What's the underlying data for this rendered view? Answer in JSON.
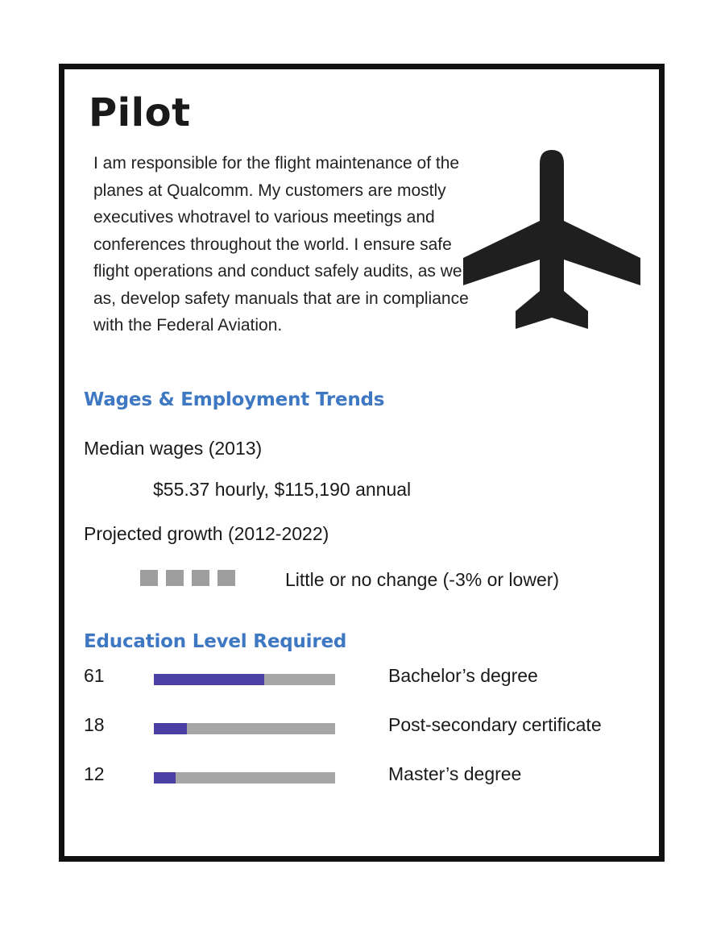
{
  "title": "Pilot",
  "description": "I am responsible for the flight maintenance of the planes at Qualcomm.  My customers are mostly executives whotravel to various meetings and conferences throughout the world.  I ensure safe flight operations and conduct safely audits, as well as, develop safety manuals that are in compliance with the Federal Aviation.",
  "icon": "airplane-icon",
  "wages": {
    "heading": "Wages &  Employment Trends",
    "median_label": "Median wages (2013)",
    "median_value": "$55.37 hourly, $115,190 annual",
    "growth_label": "Projected growth (2012-2022)",
    "growth_value": "Little or no change (-3% or lower)",
    "growth_indicator_count": 4
  },
  "education": {
    "heading": "Education Level Required",
    "items": [
      {
        "value": "61",
        "label": "Bachelor’s degree",
        "percent": 61
      },
      {
        "value": "18",
        "label": "Post-secondary certificate",
        "percent": 18
      },
      {
        "value": "12",
        "label": "Master’s degree",
        "percent": 12
      }
    ]
  },
  "colors": {
    "heading": "#3f78c2",
    "bar_fill": "#4b3fa3",
    "bar_track": "#a6a6a6",
    "border": "#111111"
  }
}
